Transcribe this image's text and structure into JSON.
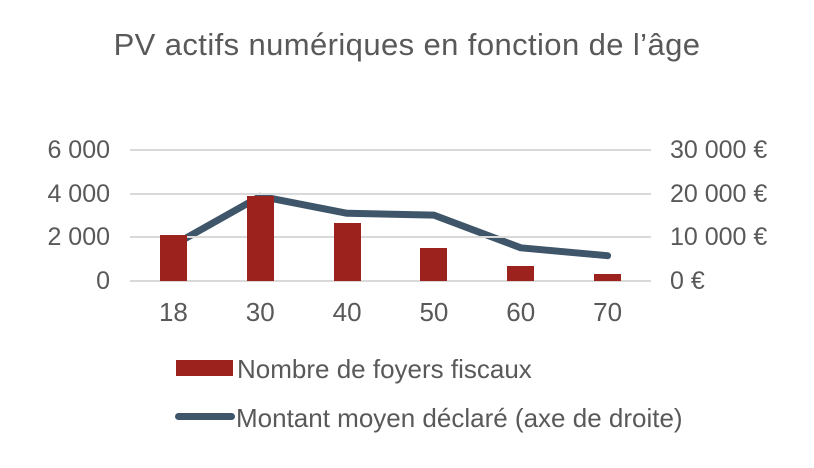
{
  "chart_data": {
    "type": "combo-bar-line",
    "title": "PV actifs numériques en fonction de l’âge",
    "categories": [
      "18",
      "30",
      "40",
      "50",
      "60",
      "70"
    ],
    "series": [
      {
        "name": "Nombre de foyers fiscaux",
        "type": "bar",
        "axis": "left",
        "color": "#9C221D",
        "values": [
          2100,
          3900,
          2650,
          1500,
          700,
          300
        ]
      },
      {
        "name": "Montant moyen déclaré (axe de droite)",
        "type": "line",
        "axis": "right",
        "color": "#3F5569",
        "values": [
          8200,
          19400,
          15500,
          15100,
          7600,
          5800
        ]
      }
    ],
    "left_axis": {
      "min": 0,
      "max": 6000,
      "step": 2000,
      "ticks": [
        "6 000",
        "4 000",
        "2 000",
        "0"
      ]
    },
    "right_axis": {
      "min": 0,
      "max": 30000,
      "step": 10000,
      "ticks": [
        "30 000 €",
        "20 000 €",
        "10 000 €",
        "0 €"
      ]
    },
    "grid": true,
    "legend_position": "bottom",
    "colors": {
      "text": "#595959",
      "gridline": "#D9D9D9",
      "background": "#FFFFFF"
    }
  }
}
